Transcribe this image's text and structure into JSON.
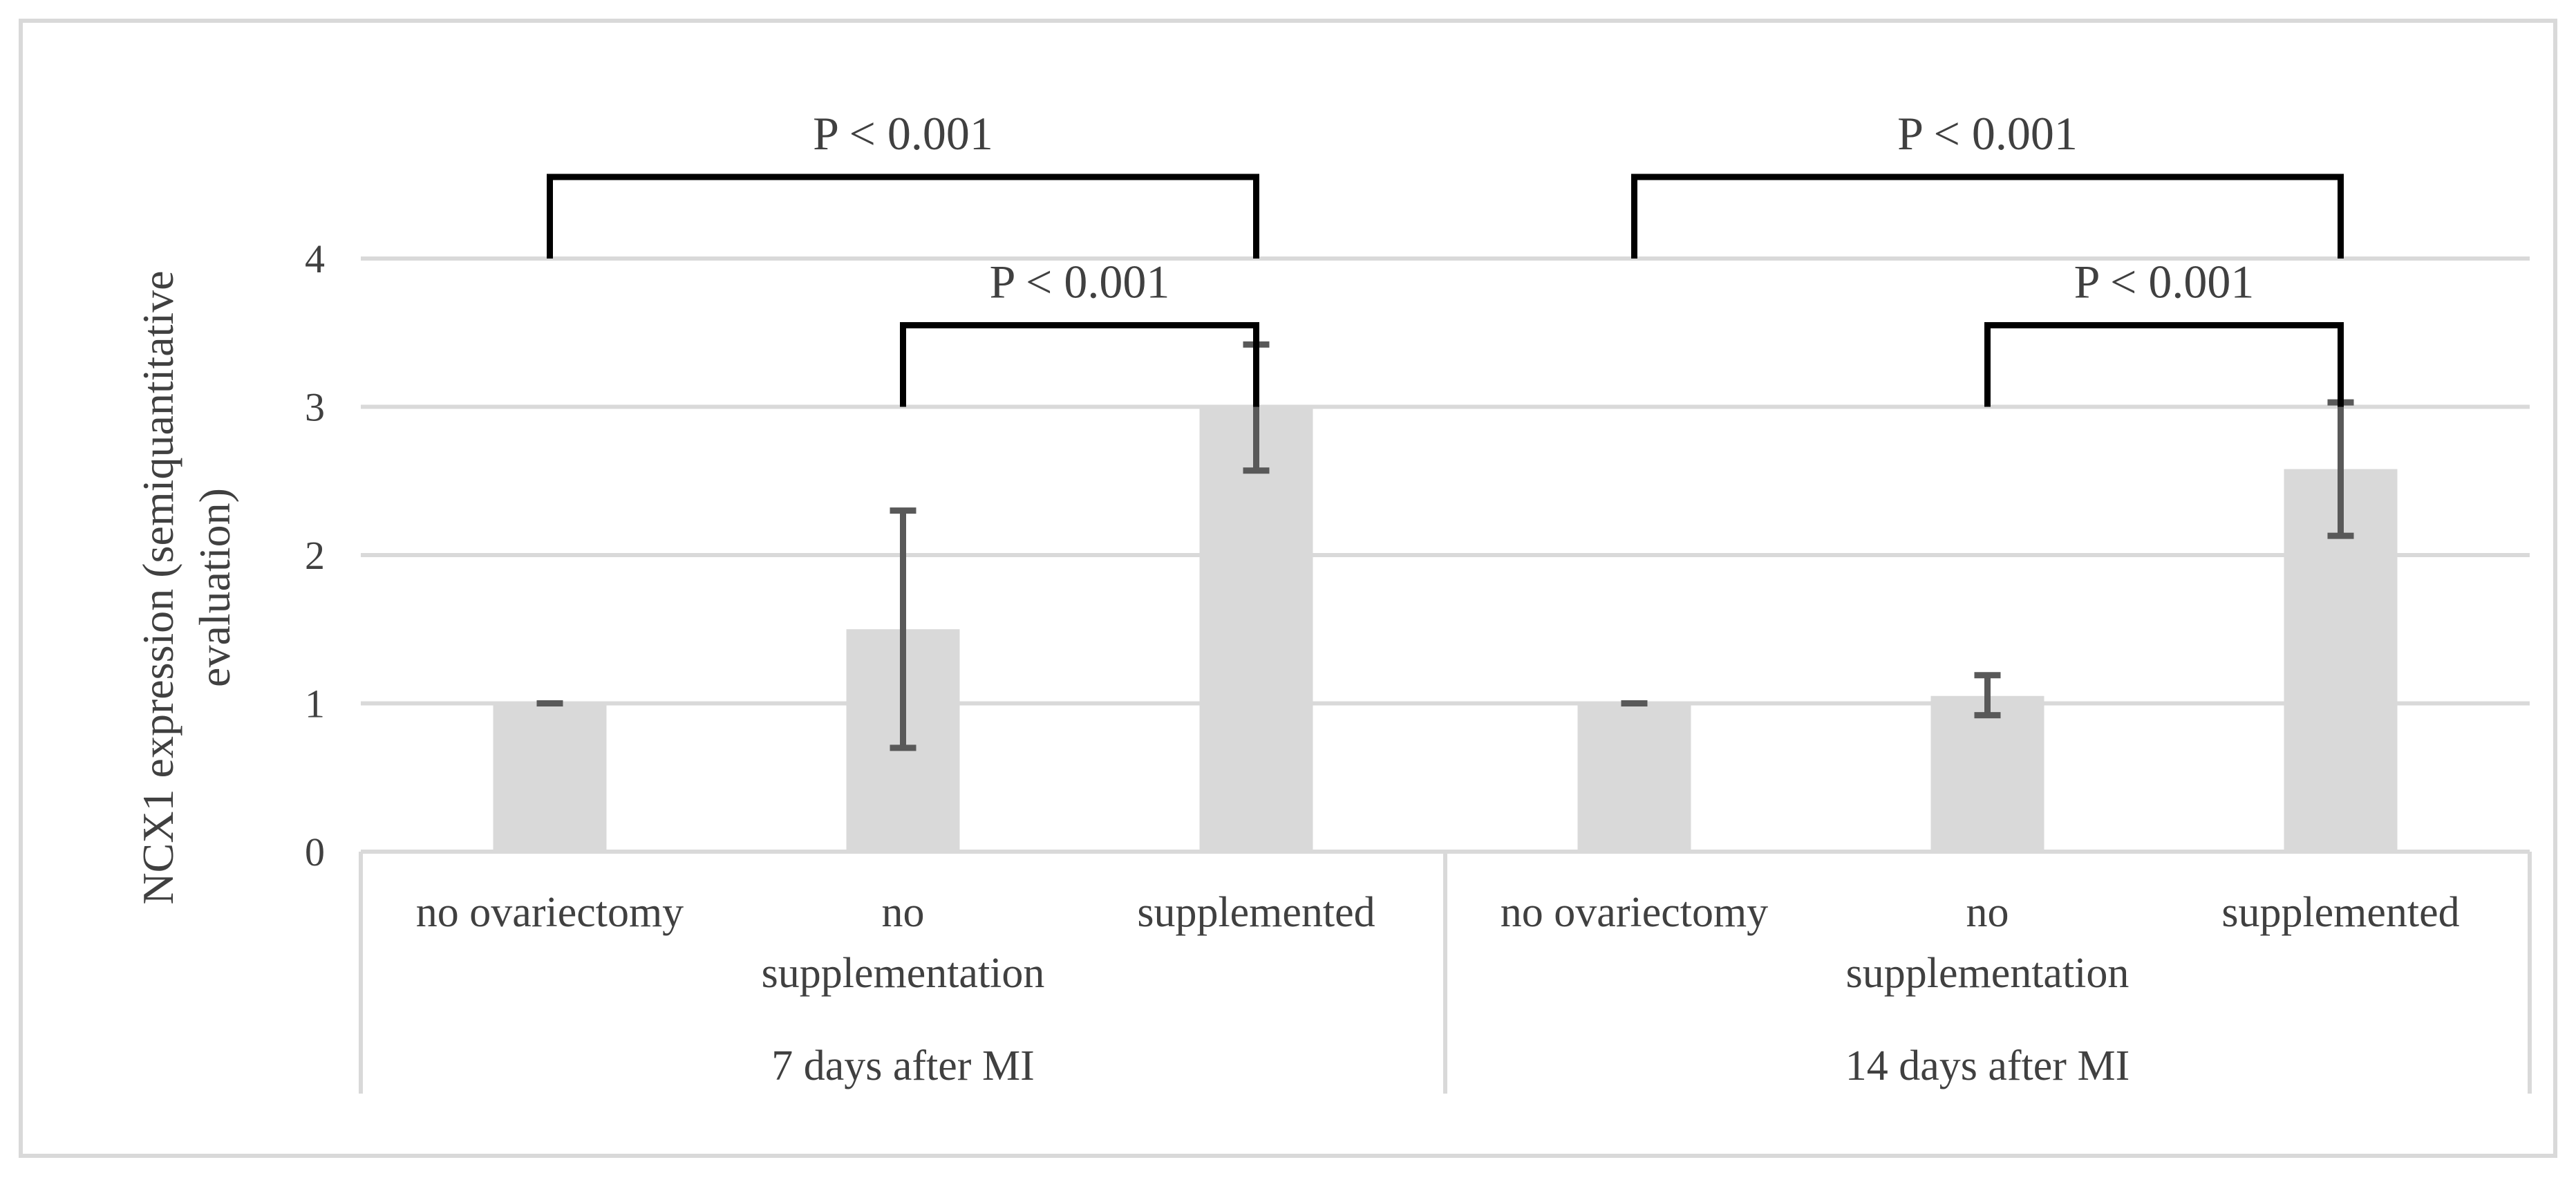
{
  "chart_data": {
    "type": "bar",
    "ylabel": "NCX1 expression (semiquantitative evaluation)",
    "ylabel_lines": [
      "NCX1 expression (semiquantitative",
      "evaluation)"
    ],
    "ylim": [
      0,
      4
    ],
    "yticks": [
      "0",
      "1",
      "2",
      "3",
      "4"
    ],
    "grid": true,
    "colors": {
      "bar": "#d9d9d9",
      "grid": "#d9d9d9",
      "error": "#595959",
      "bracket": "#000000",
      "text": "#404040"
    },
    "groups": [
      {
        "label": "7 days after MI",
        "bars": [
          {
            "category": "no ovariectomy",
            "category_lines": [
              "no ovariectomy"
            ],
            "value": 1.0,
            "error_low": 1.0,
            "error_high": 1.0
          },
          {
            "category": "no supplementation",
            "category_lines": [
              "no",
              "supplementation"
            ],
            "value": 1.5,
            "error_low": 0.7,
            "error_high": 2.3
          },
          {
            "category": "supplemented",
            "category_lines": [
              "supplemented"
            ],
            "value": 3.0,
            "error_low": 2.57,
            "error_high": 3.42
          }
        ]
      },
      {
        "label": "14 days after MI",
        "bars": [
          {
            "category": "no ovariectomy",
            "category_lines": [
              "no ovariectomy"
            ],
            "value": 1.0,
            "error_low": 1.0,
            "error_high": 1.0
          },
          {
            "category": "no supplementation",
            "category_lines": [
              "no",
              "supplementation"
            ],
            "value": 1.05,
            "error_low": 0.92,
            "error_high": 1.19
          },
          {
            "category": "supplemented",
            "category_lines": [
              "supplemented"
            ],
            "value": 2.58,
            "error_low": 2.13,
            "error_high": 3.03
          }
        ]
      }
    ],
    "annotations": [
      {
        "text": "P < 0.001",
        "group": 0,
        "from_bar": 0,
        "to_bar": 2,
        "level": 4.55
      },
      {
        "text": "P < 0.001",
        "group": 0,
        "from_bar": 1,
        "to_bar": 2,
        "level": 3.55
      },
      {
        "text": "P < 0.001",
        "group": 1,
        "from_bar": 0,
        "to_bar": 2,
        "level": 4.55
      },
      {
        "text": "P < 0.001",
        "group": 1,
        "from_bar": 1,
        "to_bar": 2,
        "level": 3.55
      }
    ]
  }
}
